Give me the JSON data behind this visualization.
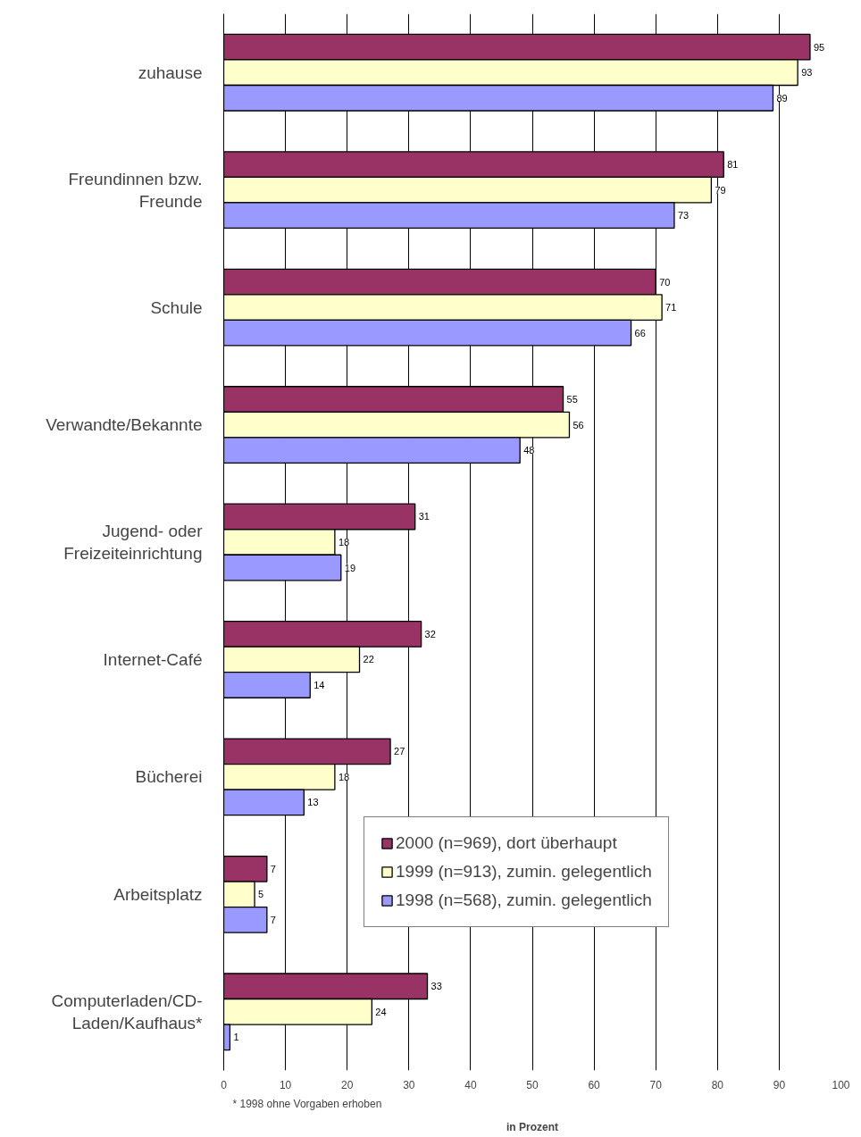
{
  "chart_data": {
    "type": "bar",
    "orientation": "horizontal",
    "categories": [
      "zuhause",
      "Freundinnen bzw.\nFreunde",
      "Schule",
      "Verwandte/Bekannte",
      "Jugend- oder\nFreizeiteinrichtung",
      "Internet-Café",
      "Bücherei",
      "Arbeitsplatz",
      "Computerladen/CD-\nLaden/Kaufhaus*"
    ],
    "series": [
      {
        "name": "2000 (n=969), dort überhaupt",
        "color": "#993366",
        "values": [
          95,
          81,
          70,
          55,
          31,
          32,
          27,
          7,
          33
        ]
      },
      {
        "name": "1999 (n=913), zumin. gelegentlich",
        "color": "#ffffcc",
        "values": [
          93,
          79,
          71,
          56,
          18,
          22,
          18,
          5,
          24
        ]
      },
      {
        "name": "1998 (n=568), zumin. gelegentlich",
        "color": "#9999ff",
        "values": [
          89,
          73,
          66,
          48,
          19,
          14,
          13,
          7,
          1
        ]
      }
    ],
    "xlim": [
      0,
      100
    ],
    "xticks": [
      0,
      10,
      20,
      30,
      40,
      50,
      60,
      70,
      80,
      90,
      100
    ],
    "xlabel": "in Prozent",
    "annotations": [
      "* 1998 ohne Vorgaben erhoben"
    ],
    "data_labels": true,
    "grid": "x",
    "legend": "right"
  }
}
